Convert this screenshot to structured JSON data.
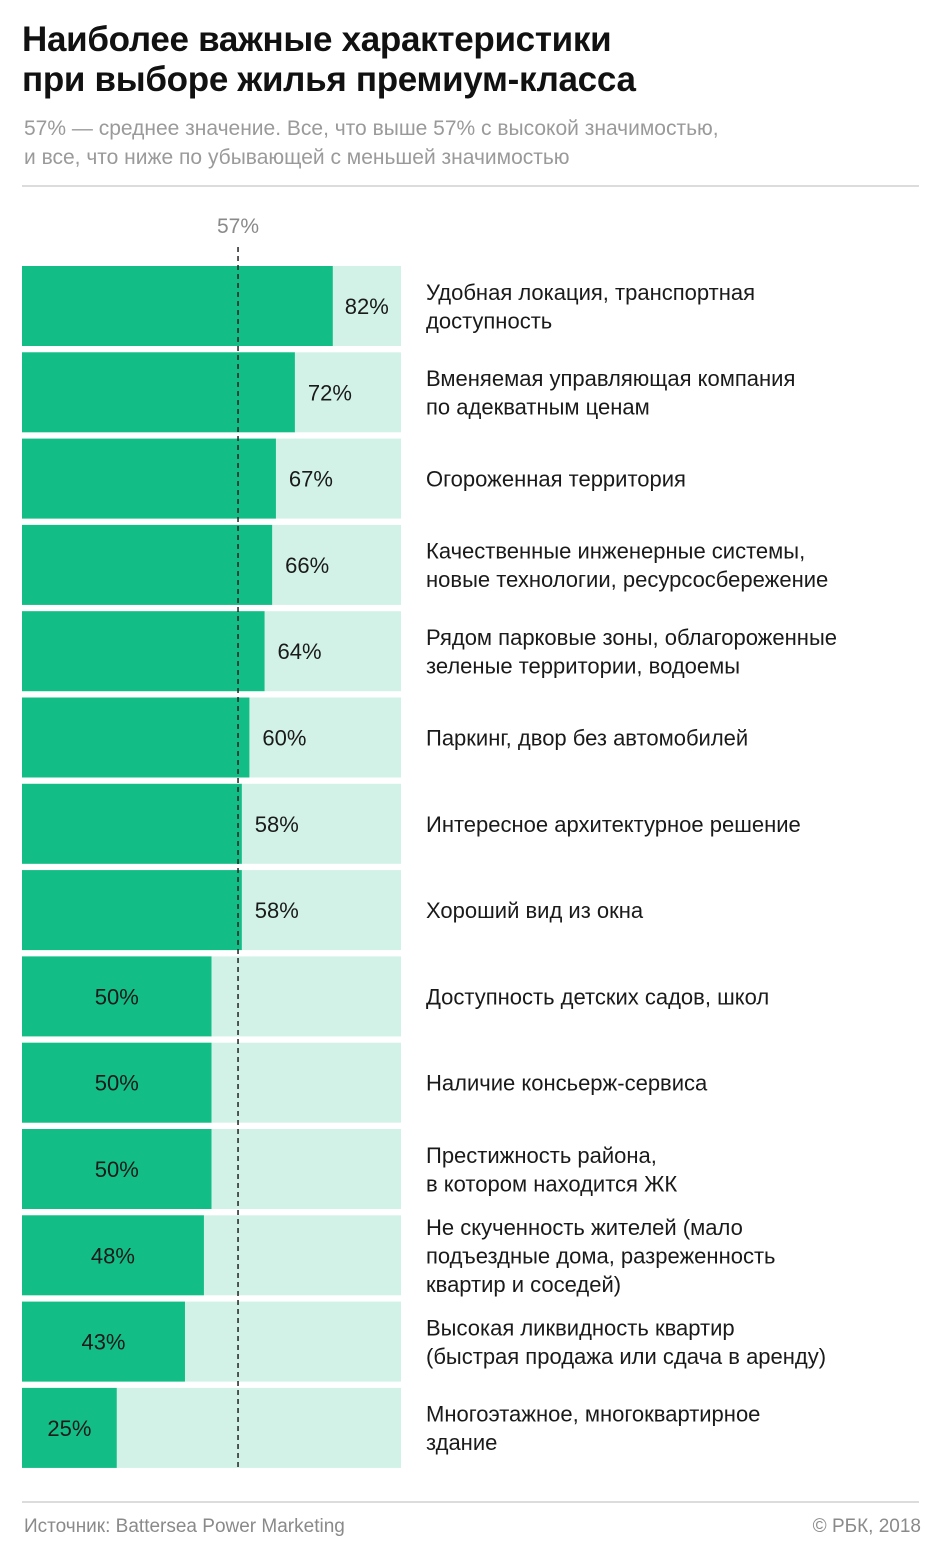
{
  "title_line1": "Наиболее важные характеристики",
  "title_line2": "при выборе жилья премиум-класса",
  "subtitle_line1": "57% — среднее значение. Все, что выше 57%  с высокой значимостью,",
  "subtitle_line2": "и все, что ниже по убывающей с меньшей значимостью",
  "footer": {
    "source": "Источник: Battersea Power Marketing",
    "copyright": "© РБК, 2018"
  },
  "colors": {
    "bar": "#13be86",
    "track": "#d2f2e7",
    "reference_line": "#222222"
  },
  "chart_data": {
    "type": "bar",
    "orientation": "horizontal",
    "xlim": [
      0,
      100
    ],
    "unit": "%",
    "reference_line": {
      "value": 57,
      "label": "57%"
    },
    "categories": [
      [
        "Удобная локация, транспортная",
        "доступность"
      ],
      [
        "Вменяемая управляющая компания",
        "по адекватным ценам"
      ],
      [
        "Огороженная территория"
      ],
      [
        "Качественные инженерные системы,",
        "новые технологии, ресурсосбережение"
      ],
      [
        "Рядом парковые зоны, облагороженные",
        "зеленые территории, водоемы"
      ],
      [
        "Паркинг, двор без автомобилей"
      ],
      [
        "Интересное архитектурное решение"
      ],
      [
        "Хороший вид из окна"
      ],
      [
        "Доступность детских садов, школ"
      ],
      [
        "Наличие консьерж-сервиса"
      ],
      [
        "Престижность района,",
        "в котором находится ЖК"
      ],
      [
        "Не скученность жителей (мало",
        "подъездные дома, разреженность",
        "квартир и соседей)"
      ],
      [
        "Высокая ликвидность квартир",
        "(быстрая продажа или сдача в аренду)"
      ],
      [
        "Многоэтажное, многоквартирное",
        "здание"
      ]
    ],
    "values": [
      82,
      72,
      67,
      66,
      64,
      60,
      58,
      58,
      50,
      50,
      50,
      48,
      43,
      25
    ],
    "value_labels": [
      "82%",
      "72%",
      "67%",
      "66%",
      "64%",
      "60%",
      "58%",
      "58%",
      "50%",
      "50%",
      "50%",
      "48%",
      "43%",
      "25%"
    ]
  }
}
